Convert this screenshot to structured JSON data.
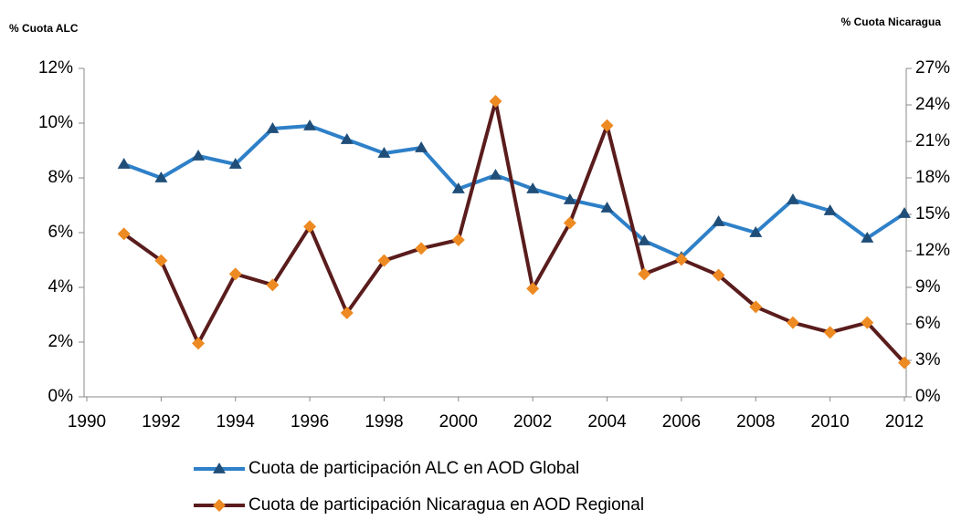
{
  "chart_data": {
    "type": "line",
    "y_axis_title": "% Cuota ALC",
    "y2_axis_title": "% Cuota Nicaragua",
    "x": [
      1991,
      1992,
      1993,
      1994,
      1995,
      1996,
      1997,
      1998,
      1999,
      2000,
      2001,
      2002,
      2003,
      2004,
      2005,
      2006,
      2007,
      2008,
      2009,
      2010,
      2011,
      2012
    ],
    "xlim": [
      1990,
      2012
    ],
    "xticks": [
      1990,
      1992,
      1994,
      1996,
      1998,
      2000,
      2002,
      2004,
      2006,
      2008,
      2010,
      2012
    ],
    "ylim": [
      0,
      12
    ],
    "yticks": [
      {
        "value": 0,
        "label": "0%"
      },
      {
        "value": 2,
        "label": "2%"
      },
      {
        "value": 4,
        "label": "4%"
      },
      {
        "value": 6,
        "label": "6%"
      },
      {
        "value": 8,
        "label": "8%"
      },
      {
        "value": 10,
        "label": "10%"
      },
      {
        "value": 12,
        "label": "12%"
      }
    ],
    "y2lim": [
      0,
      27
    ],
    "y2ticks": [
      {
        "value": 0,
        "label": "0%"
      },
      {
        "value": 3,
        "label": "3%"
      },
      {
        "value": 6,
        "label": "6%"
      },
      {
        "value": 9,
        "label": "9%"
      },
      {
        "value": 12,
        "label": "12%"
      },
      {
        "value": 15,
        "label": "15%"
      },
      {
        "value": 18,
        "label": "18%"
      },
      {
        "value": 21,
        "label": "21%"
      },
      {
        "value": 24,
        "label": "24%"
      },
      {
        "value": 27,
        "label": "27%"
      }
    ],
    "legend": "bottom",
    "series": [
      {
        "name": "Cuota de participación ALC en AOD Global",
        "color": "#2e80c8",
        "marker": "triangle",
        "marker_color": "#1f4e79",
        "values": [
          8.5,
          8.0,
          8.8,
          8.5,
          9.8,
          9.9,
          9.4,
          8.9,
          9.1,
          7.6,
          8.1,
          7.6,
          7.2,
          6.9,
          5.7,
          5.1,
          6.4,
          6.0,
          7.2,
          6.8,
          5.8,
          6.7
        ]
      },
      {
        "name": "Cuota de participación Nicaragua en AOD Regional",
        "color": "#5a1c1c",
        "marker": "diamond",
        "marker_color": "#ed8a22",
        "axis": "y2",
        "values": [
          13.4,
          11.2,
          4.4,
          10.1,
          9.2,
          14.0,
          6.9,
          11.2,
          12.2,
          12.9,
          24.3,
          8.9,
          14.3,
          22.3,
          10.1,
          11.3,
          10.0,
          7.4,
          6.1,
          5.3,
          6.1,
          2.8
        ]
      }
    ]
  }
}
